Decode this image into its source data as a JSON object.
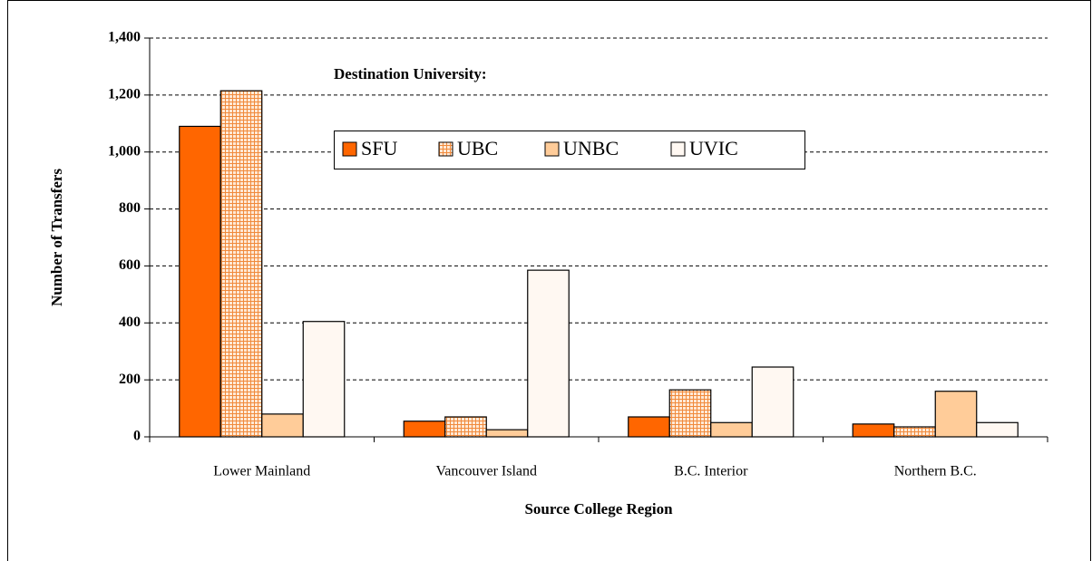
{
  "chart_data": {
    "type": "bar",
    "categories": [
      "Lower Mainland",
      "Vancouver Island",
      "B.C. Interior",
      "Northern B.C."
    ],
    "series": [
      {
        "name": "SFU",
        "color": "#ff6600",
        "values": [
          1090,
          55,
          70,
          45
        ]
      },
      {
        "name": "UBC",
        "color": "#f7a463",
        "pattern": "grid",
        "values": [
          1215,
          70,
          165,
          35
        ]
      },
      {
        "name": "UNBC",
        "color": "#ffcc99",
        "values": [
          80,
          25,
          50,
          160
        ]
      },
      {
        "name": "UVIC",
        "color": "#fff8f2",
        "values": [
          405,
          585,
          245,
          50
        ]
      }
    ],
    "legend_title": "Destination University:",
    "xlabel": "Source College Region",
    "ylabel": "Number of Transfers",
    "ylim": [
      0,
      1400
    ],
    "yticks": [
      0,
      200,
      400,
      600,
      800,
      {
        "value": 1000,
        "label": "1,000"
      },
      {
        "value": 1200,
        "label": "1,200"
      },
      {
        "value": 1400,
        "label": "1,400"
      }
    ],
    "grid": true,
    "legend": "top"
  }
}
